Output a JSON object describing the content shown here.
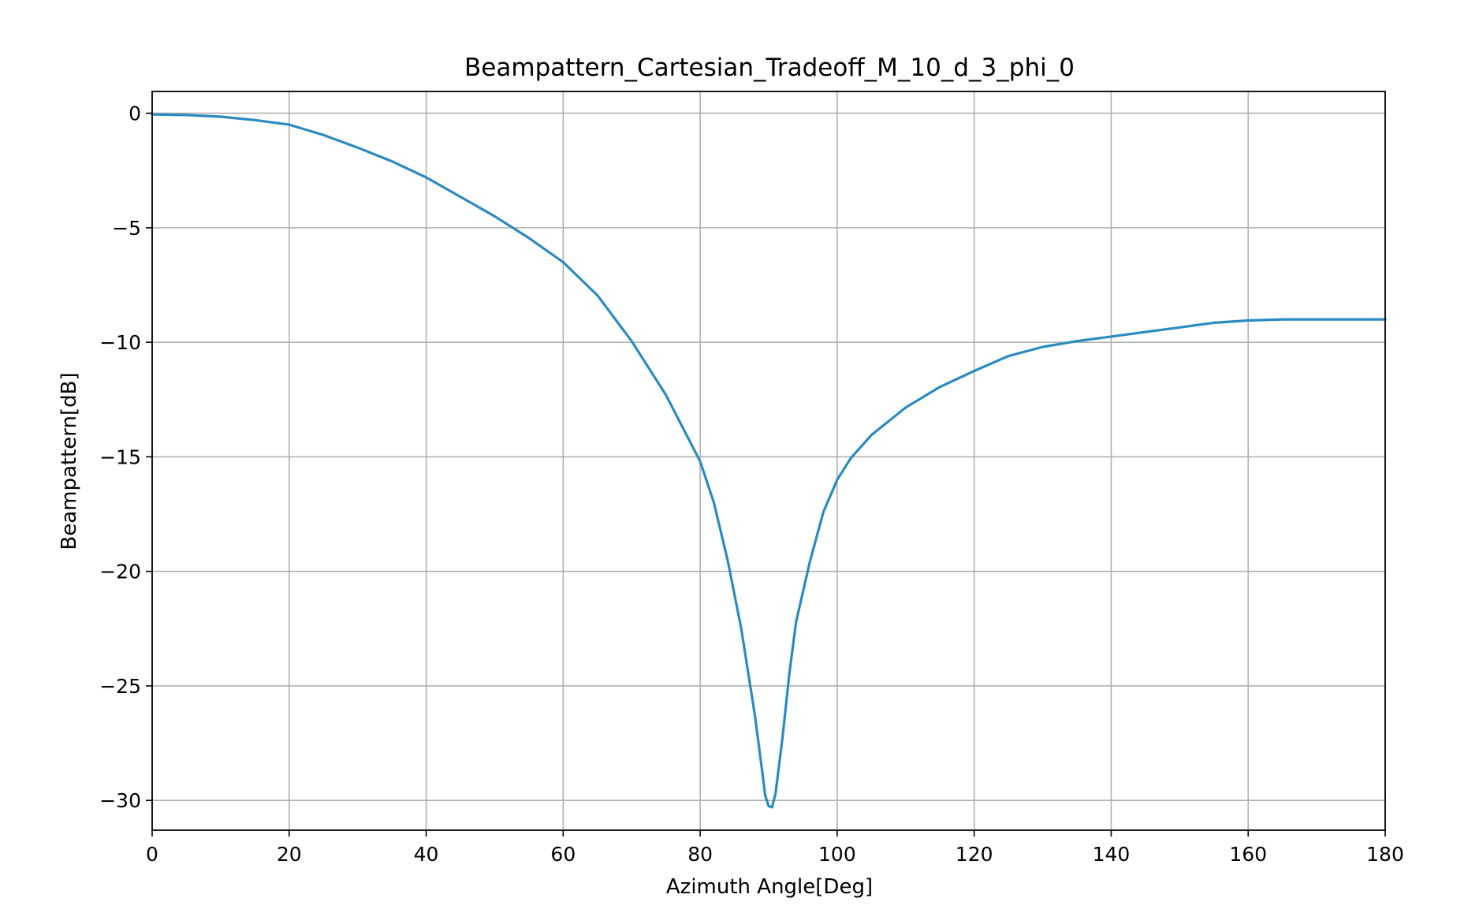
{
  "chart_data": {
    "type": "line",
    "title": "Beampattern_Cartesian_Tradeoff_M_10_d_3_phi_0",
    "xlabel": "Azimuth Angle[Deg]",
    "ylabel": "Beampattern[dB]",
    "xlim": [
      0,
      180
    ],
    "ylim": [
      -31.3,
      0.95
    ],
    "xticks": [
      0,
      20,
      40,
      60,
      80,
      100,
      120,
      140,
      160,
      180
    ],
    "xtick_labels": [
      "0",
      "20",
      "40",
      "60",
      "80",
      "100",
      "120",
      "140",
      "160",
      "180"
    ],
    "yticks": [
      0,
      -5,
      -10,
      -15,
      -20,
      -25,
      -30
    ],
    "ytick_labels": [
      "0",
      "−5",
      "−10",
      "−15",
      "−20",
      "−25",
      "−30"
    ],
    "grid": true,
    "legend": "none",
    "series": [
      {
        "color": "#2a8bc0",
        "x": [
          0,
          5,
          10,
          15,
          20,
          25,
          30,
          35,
          40,
          45,
          50,
          55,
          60,
          65,
          70,
          75,
          80,
          82,
          84,
          86,
          88,
          89,
          89.5,
          90,
          90.5,
          91,
          92,
          93,
          94,
          96,
          98,
          100,
          102,
          105,
          110,
          115,
          120,
          125,
          130,
          135,
          140,
          145,
          150,
          155,
          160,
          165,
          170,
          175,
          180
        ],
        "y": [
          -0.05,
          -0.08,
          -0.15,
          -0.3,
          -0.5,
          -0.95,
          -1.5,
          -2.1,
          -2.8,
          -3.65,
          -4.5,
          -5.45,
          -6.5,
          -7.95,
          -9.95,
          -12.3,
          -15.2,
          -17.0,
          -19.5,
          -22.5,
          -26.3,
          -28.6,
          -29.8,
          -30.25,
          -30.3,
          -29.7,
          -27.3,
          -24.5,
          -22.2,
          -19.6,
          -17.4,
          -16.0,
          -15.05,
          -14.05,
          -12.85,
          -11.95,
          -11.25,
          -10.6,
          -10.2,
          -9.95,
          -9.75,
          -9.55,
          -9.35,
          -9.15,
          -9.05,
          -9.0,
          -9.0,
          -9.0,
          -9.0
        ]
      }
    ]
  }
}
